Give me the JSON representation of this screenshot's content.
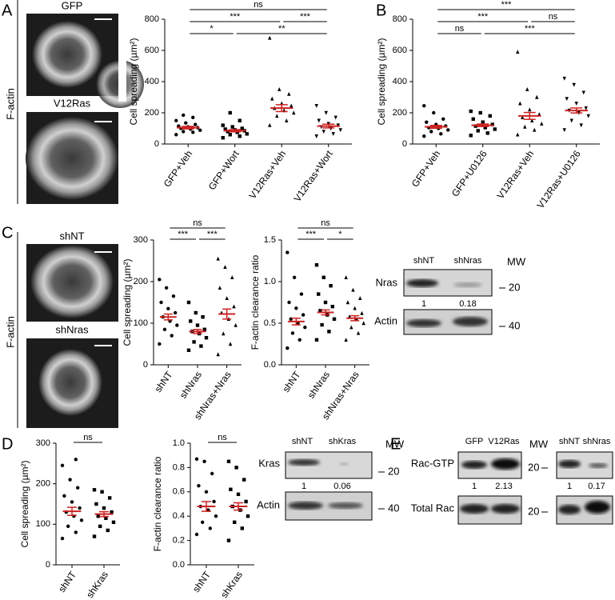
{
  "panel_labels": [
    "A",
    "B",
    "C",
    "D",
    "E"
  ],
  "images": {
    "a_side_label": "F-actin",
    "a": [
      "GFP",
      "V12Ras"
    ],
    "c_side_label": "F-actin",
    "c": [
      "shNT",
      "shNras"
    ]
  },
  "chart_data": [
    {
      "type": "dot",
      "ylabel": "Cell spreading (µm²)",
      "categories": [
        "GFP+Veh",
        "GFP+Wort",
        "V12Ras+Veh",
        "V12Ras+Wort"
      ],
      "markers": [
        "circle",
        "square",
        "triangle",
        "triangle-down"
      ],
      "color": "#000000",
      "mean_color": "#cc2222",
      "points": [
        [
          60,
          75,
          80,
          88,
          95,
          100,
          105,
          110,
          115,
          125,
          135,
          150,
          170,
          185
        ],
        [
          40,
          50,
          60,
          65,
          75,
          80,
          85,
          90,
          95,
          100,
          110,
          120,
          150,
          200
        ],
        [
          120,
          150,
          180,
          200,
          215,
          230,
          245,
          260,
          290,
          320,
          350,
          680
        ],
        [
          50,
          65,
          80,
          90,
          100,
          110,
          120,
          130,
          150,
          170,
          200,
          245
        ]
      ],
      "means": [
        105,
        85,
        230,
        115
      ],
      "sem": [
        8,
        7,
        22,
        12
      ],
      "ylim": [
        0,
        800
      ],
      "yticks": [
        0,
        200,
        400,
        600,
        800
      ],
      "comparisons": [
        {
          "between": [
            "GFP+Veh",
            "V12Ras+Wort"
          ],
          "label": "ns"
        },
        {
          "between": [
            "GFP+Veh",
            "V12Ras+Veh"
          ],
          "label": "***"
        },
        {
          "between": [
            "V12Ras+Veh",
            "V12Ras+Wort"
          ],
          "label": "***"
        },
        {
          "between": [
            "GFP+Veh",
            "GFP+Wort"
          ],
          "label": "*"
        },
        {
          "between": [
            "GFP+Wort",
            "V12Ras+Wort"
          ],
          "label": "**"
        }
      ]
    },
    {
      "type": "dot",
      "ylabel": "Cell spreading (µm²)",
      "categories": [
        "GFP+Veh",
        "GFP+U0126",
        "V12Ras+Veh",
        "V12Ras+U0126"
      ],
      "markers": [
        "circle",
        "square",
        "triangle",
        "triangle-down"
      ],
      "color": "#000000",
      "mean_color": "#cc2222",
      "points": [
        [
          50,
          65,
          80,
          90,
          100,
          105,
          115,
          125,
          140,
          160,
          200,
          245
        ],
        [
          55,
          70,
          85,
          95,
          105,
          115,
          125,
          140,
          160,
          180,
          200,
          210
        ],
        [
          60,
          90,
          110,
          130,
          150,
          170,
          190,
          220,
          260,
          300,
          350,
          590
        ],
        [
          90,
          120,
          150,
          180,
          200,
          215,
          230,
          260,
          290,
          330,
          380,
          420
        ]
      ],
      "means": [
        110,
        120,
        180,
        215
      ],
      "sem": [
        9,
        8,
        22,
        16
      ],
      "ylim": [
        0,
        800
      ],
      "yticks": [
        0,
        200,
        400,
        600,
        800
      ],
      "comparisons": [
        {
          "between": [
            "GFP+Veh",
            "V12Ras+U0126"
          ],
          "label": "***"
        },
        {
          "between": [
            "GFP+Veh",
            "V12Ras+Veh"
          ],
          "label": "***"
        },
        {
          "between": [
            "V12Ras+Veh",
            "V12Ras+U0126"
          ],
          "label": "ns"
        },
        {
          "between": [
            "GFP+Veh",
            "GFP+U0126"
          ],
          "label": "ns"
        },
        {
          "between": [
            "GFP+U0126",
            "V12Ras+U0126"
          ],
          "label": "***"
        }
      ]
    },
    {
      "type": "dot",
      "ylabel": "Cell spreading (µm²)",
      "categories": [
        "shNT",
        "shNras",
        "shNras+Nras"
      ],
      "markers": [
        "circle",
        "square",
        "triangle"
      ],
      "color": "#000000",
      "mean_color": "#cc2222",
      "points": [
        [
          50,
          70,
          85,
          95,
          105,
          115,
          125,
          135,
          150,
          165,
          185,
          205
        ],
        [
          35,
          45,
          55,
          65,
          75,
          80,
          85,
          95,
          105,
          115,
          125,
          150
        ],
        [
          25,
          50,
          75,
          95,
          110,
          125,
          140,
          160,
          185,
          210,
          235,
          255
        ]
      ],
      "means": [
        115,
        80,
        122
      ],
      "sem": [
        7,
        5,
        12
      ],
      "ylim": [
        0,
        300
      ],
      "yticks": [
        0,
        100,
        200,
        300
      ],
      "comparisons": [
        {
          "between": [
            "shNT",
            "shNras+Nras"
          ],
          "label": "ns"
        },
        {
          "between": [
            "shNT",
            "shNras"
          ],
          "label": "***"
        },
        {
          "between": [
            "shNras",
            "shNras+Nras"
          ],
          "label": "***"
        }
      ]
    },
    {
      "type": "dot",
      "ylabel": "F-actin clearance ratio",
      "categories": [
        "shNT",
        "shNras",
        "shNras+Nras"
      ],
      "markers": [
        "circle",
        "square",
        "triangle"
      ],
      "color": "#000000",
      "mean_color": "#cc2222",
      "points": [
        [
          0.2,
          0.3,
          0.38,
          0.45,
          0.5,
          0.55,
          0.6,
          0.68,
          0.75,
          0.85,
          1.05,
          1.35
        ],
        [
          0.3,
          0.4,
          0.48,
          0.55,
          0.6,
          0.65,
          0.7,
          0.75,
          0.85,
          0.95,
          1.05,
          1.2
        ],
        [
          0.3,
          0.38,
          0.45,
          0.5,
          0.55,
          0.58,
          0.62,
          0.68,
          0.75,
          0.8,
          0.9,
          1.05
        ]
      ],
      "means": [
        0.52,
        0.63,
        0.56
      ],
      "sem": [
        0.04,
        0.03,
        0.03
      ],
      "ylim": [
        0,
        1.5
      ],
      "yticks": [
        {
          "value": 0,
          "label": "0.0"
        },
        0.5,
        {
          "value": 1,
          "label": "1.0"
        },
        1.5
      ],
      "comparisons": [
        {
          "between": [
            "shNT",
            "shNras+Nras"
          ],
          "label": "ns"
        },
        {
          "between": [
            "shNT",
            "shNras"
          ],
          "label": "***"
        },
        {
          "between": [
            "shNras",
            "shNras+Nras"
          ],
          "label": "*"
        }
      ]
    },
    {
      "type": "dot",
      "ylabel": "Cell spreading (µm²)",
      "categories": [
        "shNT",
        "shKras"
      ],
      "markers": [
        "circle",
        "square"
      ],
      "color": "#000000",
      "mean_color": "#cc2222",
      "points": [
        [
          65,
          80,
          95,
          110,
          120,
          130,
          140,
          155,
          170,
          190,
          210,
          245,
          260
        ],
        [
          70,
          85,
          95,
          105,
          115,
          120,
          130,
          140,
          150,
          165,
          180,
          185
        ]
      ],
      "means": [
        132,
        125
      ],
      "sem": [
        10,
        6
      ],
      "ylim": [
        0,
        300
      ],
      "yticks": [
        0,
        100,
        200,
        300
      ],
      "comparisons": [
        {
          "between": [
            "shNT",
            "shKras"
          ],
          "label": "ns"
        }
      ]
    },
    {
      "type": "dot",
      "ylabel": "F-actin clearance ratio",
      "categories": [
        "shNT",
        "shKras"
      ],
      "markers": [
        "circle",
        "square"
      ],
      "color": "#000000",
      "mean_color": "#cc2222",
      "points": [
        [
          0.25,
          0.3,
          0.35,
          0.4,
          0.45,
          0.48,
          0.52,
          0.6,
          0.65,
          0.75,
          0.85,
          0.87
        ],
        [
          0.2,
          0.3,
          0.35,
          0.4,
          0.45,
          0.48,
          0.52,
          0.58,
          0.62,
          0.7,
          0.8,
          0.85
        ]
      ],
      "means": [
        0.48,
        0.48
      ],
      "sem": [
        0.04,
        0.03
      ],
      "ylim": [
        0,
        1
      ],
      "yticks": [
        {
          "value": 0,
          "label": "0.0"
        },
        0.2,
        0.4,
        0.6,
        0.8,
        {
          "value": 1,
          "label": "1.0"
        }
      ],
      "comparisons": [
        {
          "between": [
            "shNT",
            "shKras"
          ],
          "label": "ns"
        }
      ]
    }
  ],
  "blots": [
    {
      "columns": [
        "shNT",
        "shNras"
      ],
      "mw_header": "MW",
      "rows": [
        {
          "label": "Nras",
          "mw": "20",
          "quant": [
            1,
            0.18
          ]
        },
        {
          "label": "Actin",
          "mw": "40"
        }
      ]
    },
    {
      "columns": [
        "shNT",
        "shKras"
      ],
      "mw_header": "MW",
      "rows": [
        {
          "label": "Kras",
          "mw": "20",
          "quant": [
            1,
            0.06
          ]
        },
        {
          "label": "Actin",
          "mw": "40"
        }
      ]
    },
    {
      "columns": [
        "GFP",
        "V12Ras"
      ],
      "mw_header": "MW",
      "rows": [
        {
          "label": "Rac-GTP",
          "mw": "20",
          "quant": [
            1,
            2.13
          ]
        },
        {
          "label": "Total Rac",
          "mw": "20"
        }
      ]
    },
    {
      "columns": [
        "shNT",
        "shNras"
      ],
      "rows": [
        {
          "quant": [
            1,
            0.17
          ]
        }
      ]
    }
  ]
}
